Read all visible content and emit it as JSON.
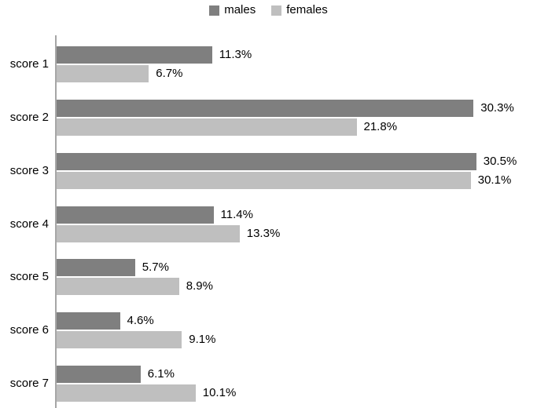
{
  "chart_data": {
    "type": "bar",
    "orientation": "horizontal",
    "title": "",
    "categories": [
      "score 1",
      "score 2",
      "score 3",
      "score 4",
      "score 5",
      "score 6",
      "score 7"
    ],
    "series": [
      {
        "name": "males",
        "color": "#7F7F7F",
        "values": [
          11.3,
          30.3,
          30.5,
          11.4,
          5.7,
          4.6,
          6.1
        ]
      },
      {
        "name": "females",
        "color": "#BFBFBF",
        "values": [
          6.7,
          21.8,
          30.1,
          13.3,
          8.9,
          9.1,
          10.1
        ]
      }
    ],
    "value_suffix": "%",
    "value_labels_shown": true,
    "xlim": [
      0,
      35
    ],
    "grid": false,
    "legend_position": "top",
    "axis_color": "#A6A6A6",
    "text_color": "#000000",
    "background_color": "#ffffff"
  }
}
